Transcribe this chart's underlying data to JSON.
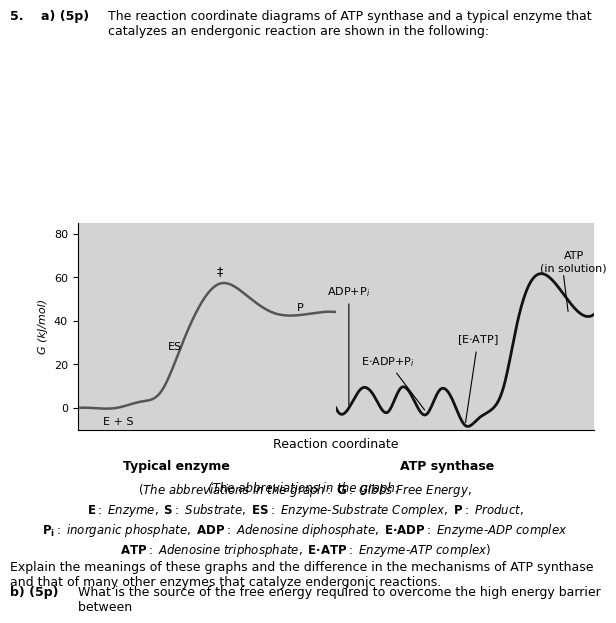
{
  "fig_width": 6.15,
  "fig_height": 6.09,
  "bg_color": "#d3d3d3",
  "panel_bg": "#d3d3d3",
  "ylim": [
    -10,
    85
  ],
  "yticks": [
    0,
    20,
    40,
    60,
    80
  ],
  "ylabel": "G (kJ/mol)",
  "xlabel": "Reaction coordinate",
  "left_label": "Typical enzyme",
  "right_label": "ATP synthase",
  "curve1_color": "#555555",
  "curve2_color": "#111111",
  "title_text": "5.  a) (5p) The reaction coordinate diagrams of ATP synthase and a typical enzyme that\ncatalyzes an endergonic reaction are shown in the following:",
  "abbrev_text": "(The abbreviations in the graph: G: Gibbs Free Energy,\nE: Enzyme, S: Substrate, ES: Enzyme-Substrate Complex, P: Product,\nPi: inorganic phosphate, ADP: Adenosine diphosphate, E·ADP: Enzyme-ADP complex\nATP: Adenosine triphosphate, E·ATP: Enzyme-ATP complex)",
  "explain_text": "Explain the meanings of these graphs and the difference in the mechanisms of ATP synthase\nand that of many other enzymes that catalyze endergonic reactions.",
  "partb_text": "b) (5p) What is the source of the free energy required to overcome the high energy barrier\nbetween E·ATP and ATP (in solution) in the graph provided in part a? Explain."
}
